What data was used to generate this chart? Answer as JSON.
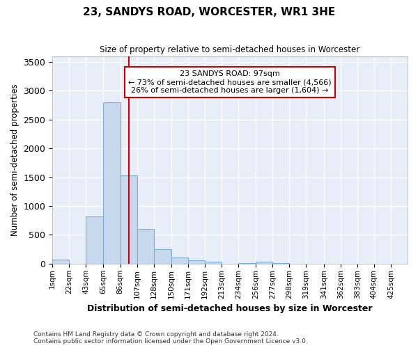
{
  "title": "23, SANDYS ROAD, WORCESTER, WR1 3HE",
  "subtitle": "Size of property relative to semi-detached houses in Worcester",
  "xlabel": "Distribution of semi-detached houses by size in Worcester",
  "ylabel": "Number of semi-detached properties",
  "bar_color": "#c9d9ed",
  "bar_edge_color": "#7aadd4",
  "plot_bg_color": "#e8eef8",
  "fig_bg_color": "#ffffff",
  "grid_color": "#ffffff",
  "vline_x": 97,
  "vline_color": "#cc0000",
  "annotation_line1": "23 SANDYS ROAD: 97sqm",
  "annotation_line2": "← 73% of semi-detached houses are smaller (4,566)",
  "annotation_line3": "26% of semi-detached houses are larger (1,604) →",
  "annotation_box_color": "#ffffff",
  "annotation_box_edge": "#cc0000",
  "categories": [
    "1sqm",
    "22sqm",
    "43sqm",
    "65sqm",
    "86sqm",
    "107sqm",
    "128sqm",
    "150sqm",
    "171sqm",
    "192sqm",
    "213sqm",
    "234sqm",
    "256sqm",
    "277sqm",
    "298sqm",
    "319sqm",
    "341sqm",
    "362sqm",
    "383sqm",
    "404sqm",
    "425sqm"
  ],
  "bin_edges": [
    1,
    22,
    43,
    65,
    86,
    107,
    128,
    150,
    171,
    192,
    213,
    234,
    256,
    277,
    298,
    319,
    341,
    362,
    383,
    404,
    425,
    446
  ],
  "bar_heights": [
    75,
    0,
    820,
    2800,
    1530,
    600,
    250,
    110,
    60,
    35,
    0,
    5,
    35,
    5,
    0,
    0,
    0,
    0,
    0,
    0,
    0
  ],
  "ylim": [
    0,
    3600
  ],
  "yticks": [
    0,
    500,
    1000,
    1500,
    2000,
    2500,
    3000,
    3500
  ],
  "footnote1": "Contains HM Land Registry data © Crown copyright and database right 2024.",
  "footnote2": "Contains public sector information licensed under the Open Government Licence v3.0."
}
